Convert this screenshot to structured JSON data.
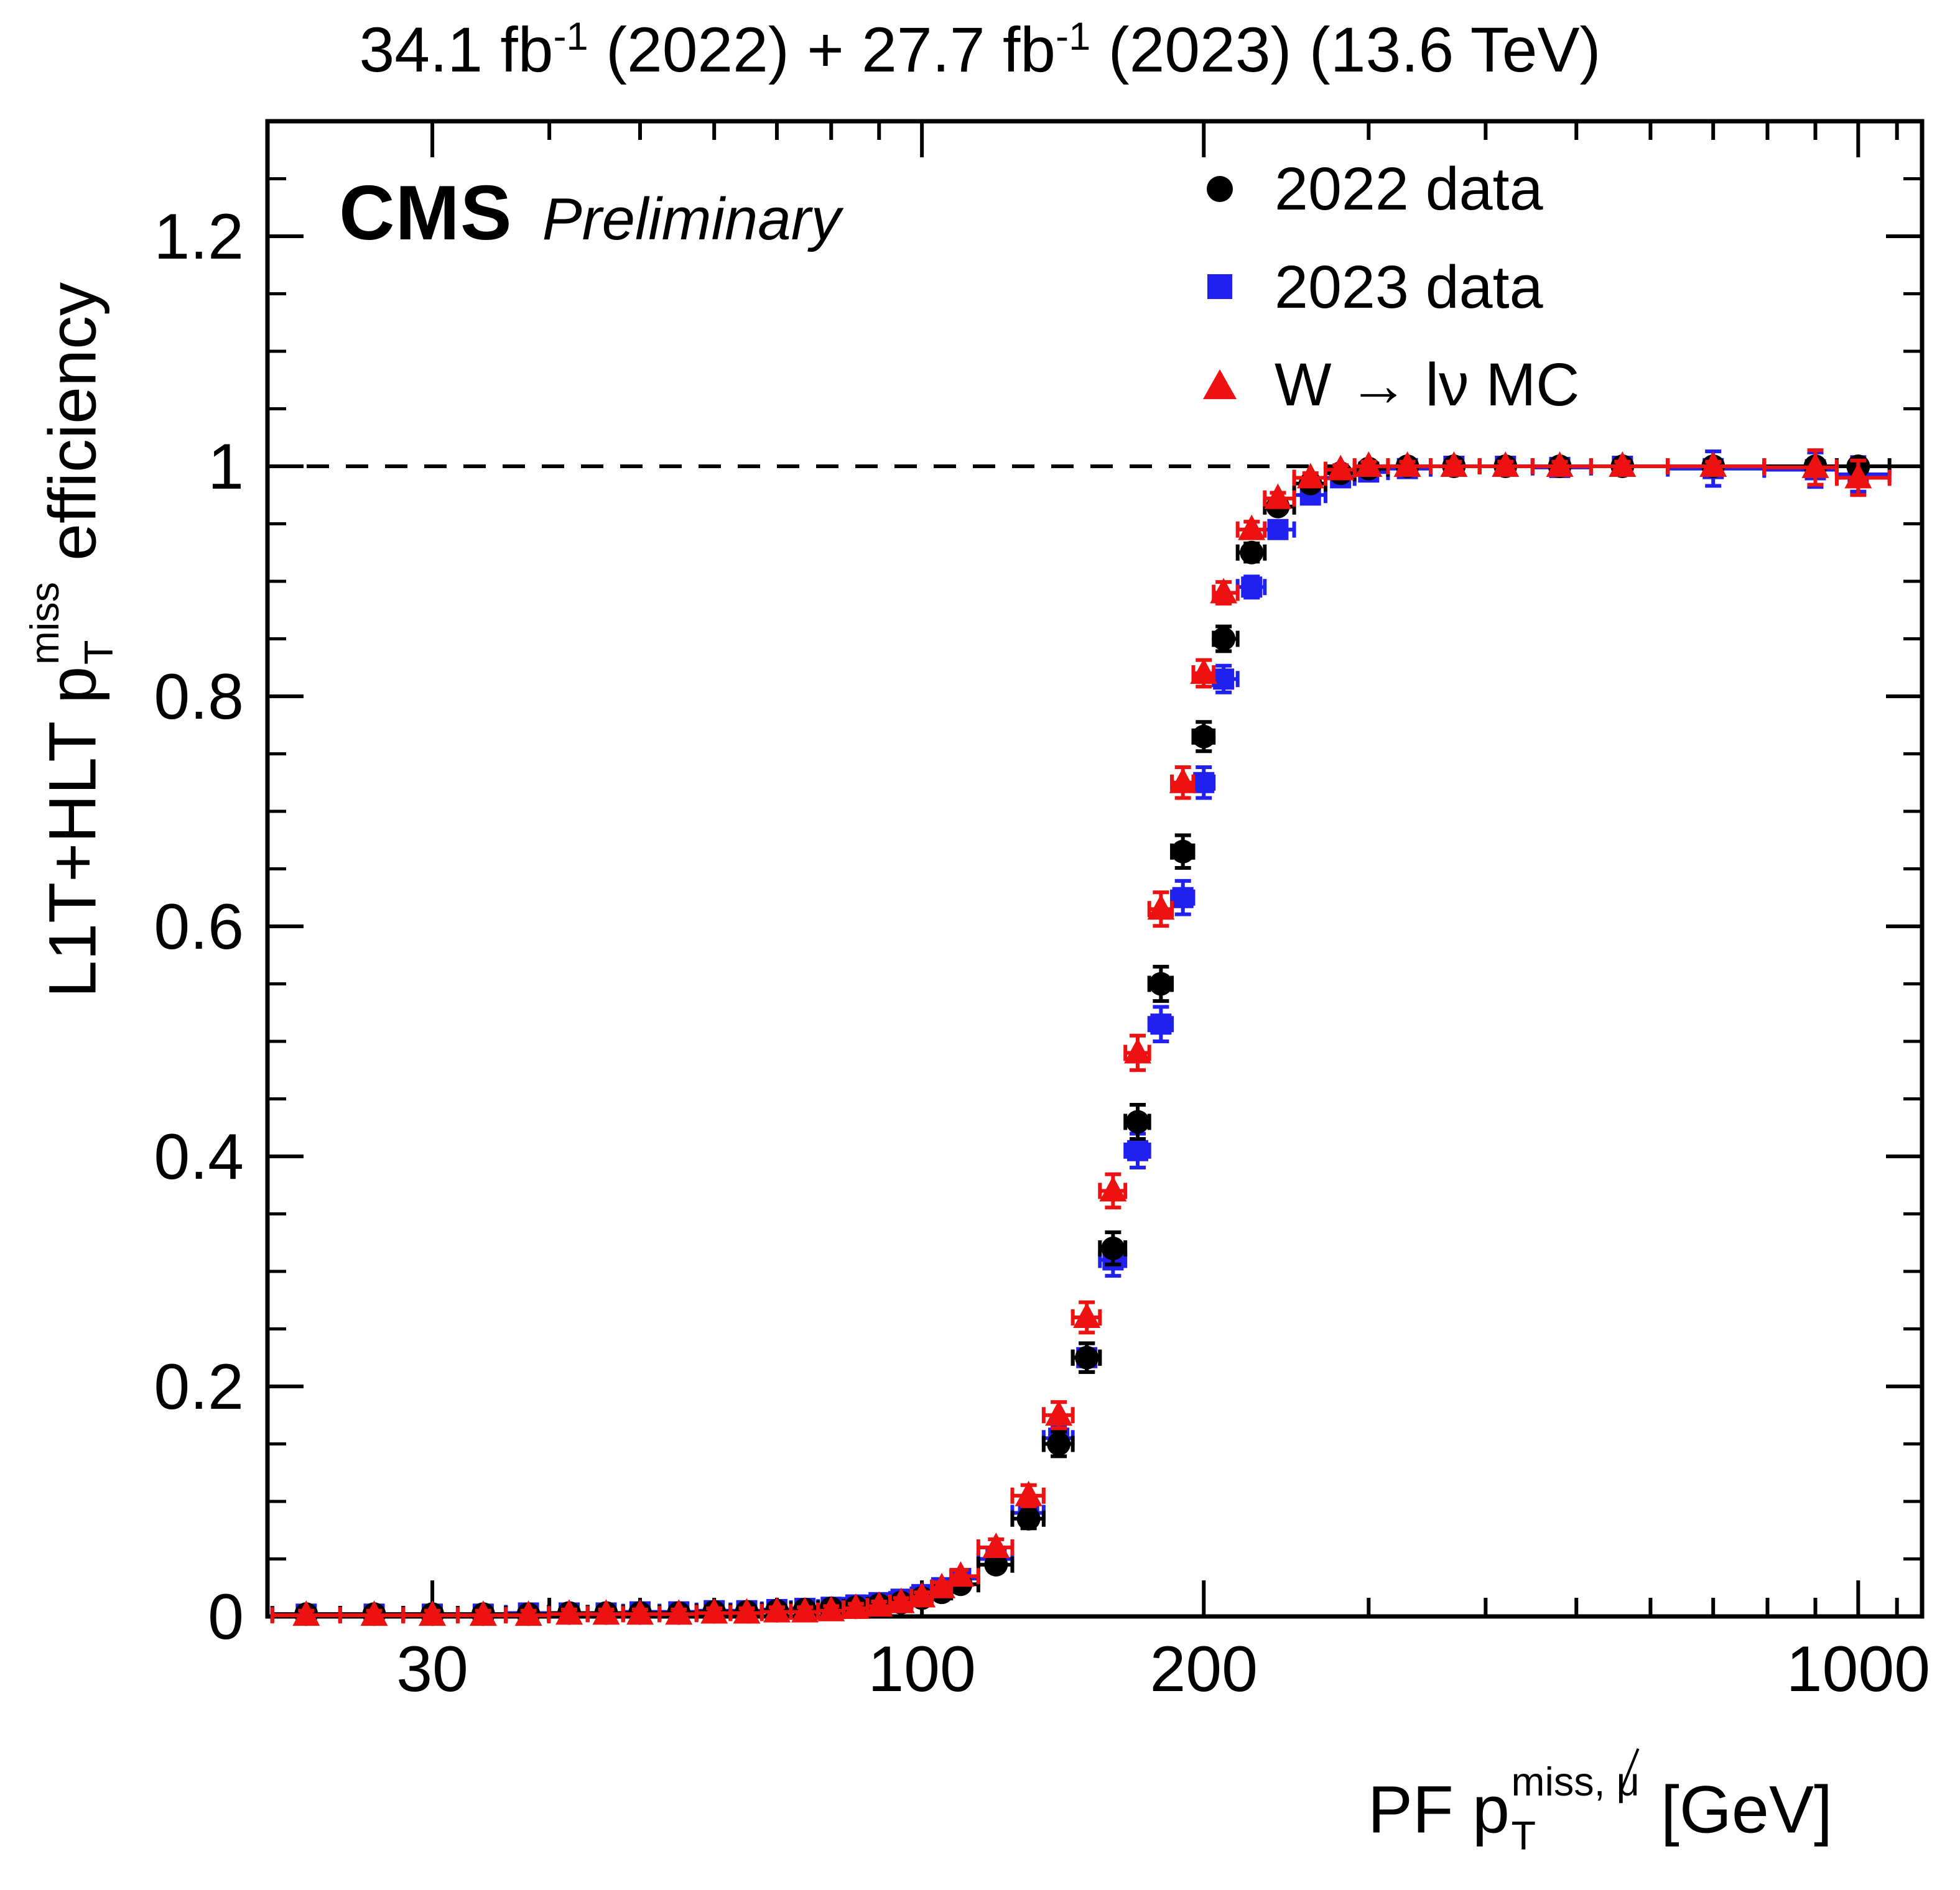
{
  "header": {
    "lumi": {
      "p1": "34.1 fb",
      "sup1": "-1",
      "p2": " (2022) + 27.7 fb",
      "sup2": "-1",
      "p3": " (2023) (13.6 TeV)"
    },
    "experiment": "CMS",
    "label": "Preliminary"
  },
  "legend": {
    "items": [
      {
        "label": "2022 data",
        "marker": "circle",
        "color": "#000000"
      },
      {
        "label": "2023 data",
        "marker": "square",
        "color": "#2020f0"
      },
      {
        "label": "W → lν MC",
        "marker": "triangle",
        "color": "#ee1111"
      }
    ]
  },
  "axes": {
    "x": {
      "title_prefix": "PF p",
      "title_sub": "T",
      "title_sup": "miss, ",
      "title_mu": "μ",
      "title_suffix": " [GeV]",
      "scale": "log",
      "ticks": [
        30,
        100,
        200,
        1000
      ]
    },
    "y": {
      "title_prefix": "L1T+HLT p",
      "title_sub": "T",
      "title_sup": "miss",
      "title_suffix": " efficiency",
      "ticks": [
        0,
        0.2,
        0.4,
        0.6,
        0.8,
        1,
        1.2
      ]
    }
  },
  "reference_line": {
    "y": 1,
    "style": "dashed"
  },
  "chart_data": {
    "type": "scatter",
    "title": "34.1 fb^-1 (2022) + 27.7 fb^-1 (2023) (13.6 TeV)",
    "xlabel": "PF pT^miss,mu(subtracted) [GeV]",
    "ylabel": "L1T+HLT pT^miss efficiency",
    "xscale": "log",
    "xlim": [
      20,
      1170
    ],
    "ylim": [
      0,
      1.3
    ],
    "grid": false,
    "legend_position": "top-right",
    "x": [
      22,
      26,
      30,
      34,
      38,
      42,
      46,
      50,
      55,
      60,
      65,
      70,
      75,
      80,
      85,
      90,
      95,
      100,
      105,
      110,
      120,
      130,
      140,
      150,
      160,
      170,
      180,
      190,
      200,
      210,
      225,
      240,
      260,
      280,
      300,
      330,
      370,
      420,
      480,
      560,
      700,
      900,
      1000
    ],
    "series": [
      {
        "name": "2022 data",
        "marker": "circle",
        "color": "#000000",
        "values": [
          0.002,
          0.002,
          0.002,
          0.002,
          0.002,
          0.003,
          0.003,
          0.003,
          0.003,
          0.004,
          0.004,
          0.005,
          0.006,
          0.007,
          0.008,
          0.01,
          0.012,
          0.016,
          0.021,
          0.028,
          0.045,
          0.085,
          0.15,
          0.225,
          0.32,
          0.43,
          0.55,
          0.665,
          0.765,
          0.85,
          0.925,
          0.965,
          0.985,
          0.994,
          0.998,
          1.0,
          1.0,
          1.0,
          1.0,
          1.0,
          1.0,
          1.0,
          1.0
        ]
      },
      {
        "name": "2023 data",
        "marker": "square",
        "color": "#2020f0",
        "values": [
          0.002,
          0.002,
          0.002,
          0.002,
          0.003,
          0.003,
          0.003,
          0.004,
          0.004,
          0.005,
          0.005,
          0.006,
          0.007,
          0.008,
          0.01,
          0.012,
          0.015,
          0.019,
          0.025,
          0.033,
          0.05,
          0.09,
          0.155,
          0.225,
          0.31,
          0.405,
          0.515,
          0.625,
          0.725,
          0.815,
          0.895,
          0.945,
          0.975,
          0.99,
          0.995,
          0.998,
          1.0,
          1.0,
          0.999,
          1.0,
          0.998,
          0.997,
          0.993
        ]
      },
      {
        "name": "W -> lnu MC",
        "marker": "triangle",
        "color": "#ee1111",
        "values": [
          0.001,
          0.001,
          0.001,
          0.001,
          0.001,
          0.002,
          0.002,
          0.002,
          0.002,
          0.003,
          0.003,
          0.004,
          0.004,
          0.005,
          0.007,
          0.009,
          0.012,
          0.017,
          0.025,
          0.035,
          0.06,
          0.105,
          0.175,
          0.26,
          0.37,
          0.49,
          0.615,
          0.725,
          0.82,
          0.89,
          0.945,
          0.972,
          0.99,
          0.997,
          1.0,
          1.0,
          1.0,
          1.0,
          1.0,
          1.0,
          1.0,
          0.999,
          0.99
        ]
      }
    ]
  }
}
